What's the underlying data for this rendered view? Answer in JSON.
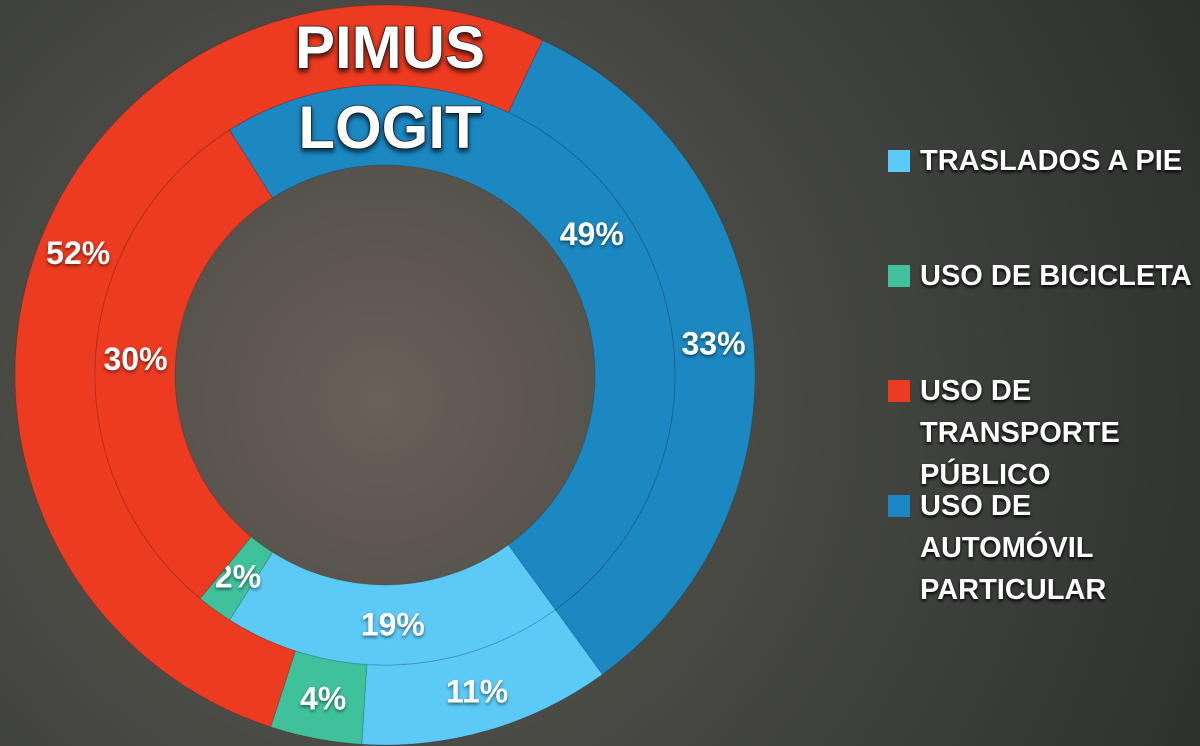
{
  "chart_data": {
    "type": "donut",
    "categories": [
      "TRASLADOS A PIE",
      "USO DE BICICLETA",
      "USO DE TRANSPORTE PÚBLICO",
      "USO DE AUTOMÓVIL PARTICULAR"
    ],
    "colors": [
      "#5ccaf7",
      "#3fc29c",
      "#ec3b20",
      "#1b88c2"
    ],
    "series": [
      {
        "name": "PIMUS",
        "values": [
          11,
          4,
          52,
          33
        ],
        "value_labels": [
          "11%",
          "4%",
          "52%",
          "33%"
        ]
      },
      {
        "name": "LOGIT",
        "values": [
          19,
          2,
          30,
          49
        ],
        "value_labels": [
          "19%",
          "2%",
          "30%",
          "49%"
        ]
      }
    ]
  }
}
